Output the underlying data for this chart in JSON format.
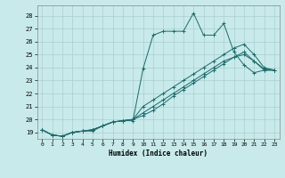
{
  "xlabel": "Humidex (Indice chaleur)",
  "xlim": [
    -0.5,
    23.5
  ],
  "ylim": [
    18.5,
    28.8
  ],
  "xticks": [
    0,
    1,
    2,
    3,
    4,
    5,
    6,
    7,
    8,
    9,
    10,
    11,
    12,
    13,
    14,
    15,
    16,
    17,
    18,
    19,
    20,
    21,
    22,
    23
  ],
  "yticks": [
    19,
    20,
    21,
    22,
    23,
    24,
    25,
    26,
    27,
    28
  ],
  "background_color": "#c8eaea",
  "grid_color": "#aacece",
  "line_color": "#1a6b6b",
  "series": [
    [
      19.2,
      18.8,
      18.7,
      19.0,
      19.1,
      19.1,
      19.5,
      19.8,
      19.9,
      19.9,
      23.9,
      26.5,
      26.8,
      26.8,
      26.8,
      28.2,
      26.5,
      26.5,
      27.4,
      25.2,
      24.2,
      23.6,
      23.8,
      23.8
    ],
    [
      19.2,
      18.8,
      18.7,
      19.0,
      19.1,
      19.2,
      19.5,
      19.8,
      19.9,
      20.0,
      21.0,
      21.5,
      22.0,
      22.5,
      23.0,
      23.5,
      24.0,
      24.5,
      25.0,
      25.5,
      25.8,
      25.0,
      24.0,
      23.8
    ],
    [
      19.2,
      18.8,
      18.7,
      19.0,
      19.1,
      19.2,
      19.5,
      19.8,
      19.9,
      20.0,
      20.5,
      21.0,
      21.5,
      22.0,
      22.5,
      23.0,
      23.5,
      24.0,
      24.5,
      24.8,
      25.0,
      24.5,
      23.8,
      23.8
    ],
    [
      19.2,
      18.8,
      18.7,
      19.0,
      19.1,
      19.2,
      19.5,
      19.8,
      19.9,
      20.0,
      20.3,
      20.7,
      21.2,
      21.8,
      22.3,
      22.8,
      23.3,
      23.8,
      24.3,
      24.8,
      25.2,
      24.5,
      23.9,
      23.8
    ]
  ]
}
